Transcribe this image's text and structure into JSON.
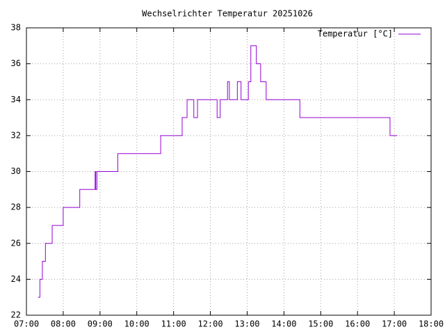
{
  "chart_data": {
    "type": "line",
    "title": "Wechselrichter Temperatur 20251026",
    "x": [
      "07:19",
      "07:22",
      "07:22",
      "07:26",
      "07:26",
      "07:31",
      "07:31",
      "07:42",
      "07:42",
      "08:00",
      "08:00",
      "08:27",
      "08:27",
      "08:52",
      "08:52",
      "08:53",
      "08:53",
      "08:55",
      "08:55",
      "09:29",
      "09:29",
      "10:39",
      "10:39",
      "11:14",
      "11:14",
      "11:22",
      "11:22",
      "11:33",
      "11:33",
      "11:39",
      "11:39",
      "12:11",
      "12:11",
      "12:16",
      "12:16",
      "12:28",
      "12:28",
      "12:31",
      "12:31",
      "12:44",
      "12:44",
      "12:50",
      "12:50",
      "13:02",
      "13:02",
      "13:06",
      "13:06",
      "13:15",
      "13:15",
      "13:22",
      "13:22",
      "13:31",
      "13:31",
      "14:26",
      "14:26",
      "16:53",
      "16:53",
      "17:05"
    ],
    "series": [
      {
        "name": "Temperatur [°C]",
        "color": "#9400d3",
        "values": [
          23,
          23,
          24,
          24,
          25,
          25,
          26,
          26,
          27,
          27,
          28,
          28,
          29,
          29,
          30,
          30,
          29,
          29,
          30,
          30,
          31,
          31,
          32,
          32,
          33,
          33,
          34,
          34,
          33,
          33,
          34,
          34,
          33,
          33,
          34,
          34,
          35,
          35,
          34,
          34,
          35,
          35,
          34,
          34,
          35,
          35,
          37,
          37,
          36,
          36,
          35,
          35,
          34,
          34,
          33,
          33,
          32,
          32
        ]
      }
    ],
    "xlim": [
      "07:00",
      "18:00"
    ],
    "xticks": [
      "07:00",
      "08:00",
      "09:00",
      "10:00",
      "11:00",
      "12:00",
      "13:00",
      "14:00",
      "15:00",
      "16:00",
      "17:00",
      "18:00"
    ],
    "ylim": [
      22,
      38
    ],
    "yticks": [
      22,
      24,
      26,
      28,
      30,
      32,
      34,
      36,
      38
    ],
    "grid": true,
    "legend": "top-right"
  }
}
